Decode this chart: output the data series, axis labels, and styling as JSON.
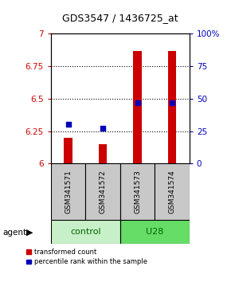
{
  "title": "GDS3547 / 1436725_at",
  "samples": [
    "GSM341571",
    "GSM341572",
    "GSM341573",
    "GSM341574"
  ],
  "red_values": [
    6.2,
    6.15,
    6.87,
    6.87
  ],
  "blue_percentiles": [
    30,
    27,
    47,
    47
  ],
  "ylim_left": [
    6.0,
    7.0
  ],
  "ylim_right": [
    0,
    100
  ],
  "yticks_left": [
    6.0,
    6.25,
    6.5,
    6.75,
    7.0
  ],
  "yticks_right": [
    0,
    25,
    50,
    75,
    100
  ],
  "bar_color": "#CC0000",
  "dot_color": "#0000BB",
  "bar_width": 0.25,
  "sample_bg_color": "#C8C8C8",
  "control_color": "#C8F0C8",
  "u28_color": "#66DD66",
  "legend_red": "transformed count",
  "legend_blue": "percentile rank within the sample",
  "title_fontsize": 9,
  "tick_fontsize": 7.5
}
